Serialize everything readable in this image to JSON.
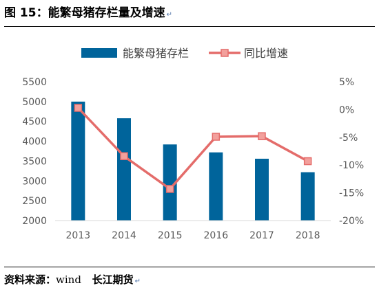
{
  "header": {
    "title": "图 15：能繁母猪存栏量及增速",
    "para_mark": "↵"
  },
  "footer": {
    "source_prefix": "资料来源：",
    "source_word": "wind",
    "source_org": "长江期货",
    "para_mark": "↵"
  },
  "colors": {
    "bar": "#00649b",
    "line": "#e46c6a",
    "marker_fill": "#f2a09c",
    "axis": "#d9d9d9"
  },
  "chart_data": {
    "type": "bar+line",
    "categories": [
      "2013",
      "2014",
      "2015",
      "2016",
      "2017",
      "2018"
    ],
    "series": [
      {
        "name": "能繁母猪存栏",
        "type": "bar",
        "axis": "left",
        "values": [
          5000,
          4580,
          3920,
          3720,
          3560,
          3220
        ]
      },
      {
        "name": "同比增速",
        "type": "line",
        "axis": "right",
        "values": [
          0.3,
          -8.4,
          -14.3,
          -4.9,
          -4.8,
          -9.3
        ]
      }
    ],
    "y_left": {
      "min": 2000,
      "max": 5500,
      "step": 500
    },
    "y_right": {
      "min": -20,
      "max": 5,
      "step": 5,
      "suffix": "%"
    },
    "legend": "top-center",
    "grid": false
  }
}
